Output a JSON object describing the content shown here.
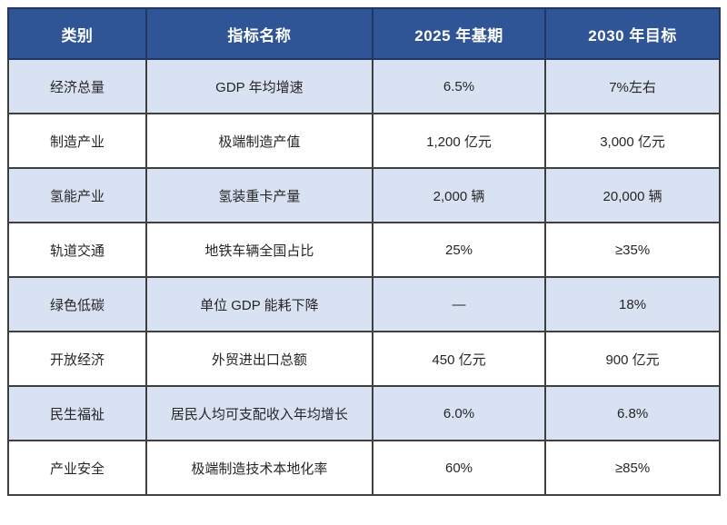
{
  "page": {
    "background": "#FFFFFF"
  },
  "chart_data": {
    "type": "table",
    "title": "",
    "columns": [
      "类别",
      "指标名称",
      "2025 年基期",
      "2030 年目标"
    ],
    "rows": [
      [
        "经济总量",
        "GDP 年均增速",
        "6.5%",
        "7%左右"
      ],
      [
        "制造产业",
        "极端制造产值",
        "1,200 亿元",
        "3,000 亿元"
      ],
      [
        "氢能产业",
        "氢装重卡产量",
        "2,000 辆",
        "20,000 辆"
      ],
      [
        "轨道交通",
        "地铁车辆全国占比",
        "25%",
        "≥35%"
      ],
      [
        "绿色低碳",
        "单位 GDP 能耗下降",
        "—",
        "18%"
      ],
      [
        "开放经济",
        "外贸进出口总额",
        "450 亿元",
        "900 亿元"
      ],
      [
        "民生福祉",
        "居民人均可支配收入年均增长",
        "6.0%",
        "6.8%"
      ],
      [
        "产业安全",
        "极端制造技术本地化率",
        "60%",
        "≥85%"
      ]
    ],
    "layout": {
      "striped_rows": "odd data rows shaded light blue",
      "header_position": "top",
      "grid": "on"
    },
    "styles": {
      "header_bg": "#2F5597",
      "header_text": "#FFFFFF",
      "header_border": "#1F3864",
      "row_alt_bg": "#D9E2F3",
      "row_bg": "#FFFFFF",
      "body_text": "#262626",
      "border": "#404040"
    }
  }
}
